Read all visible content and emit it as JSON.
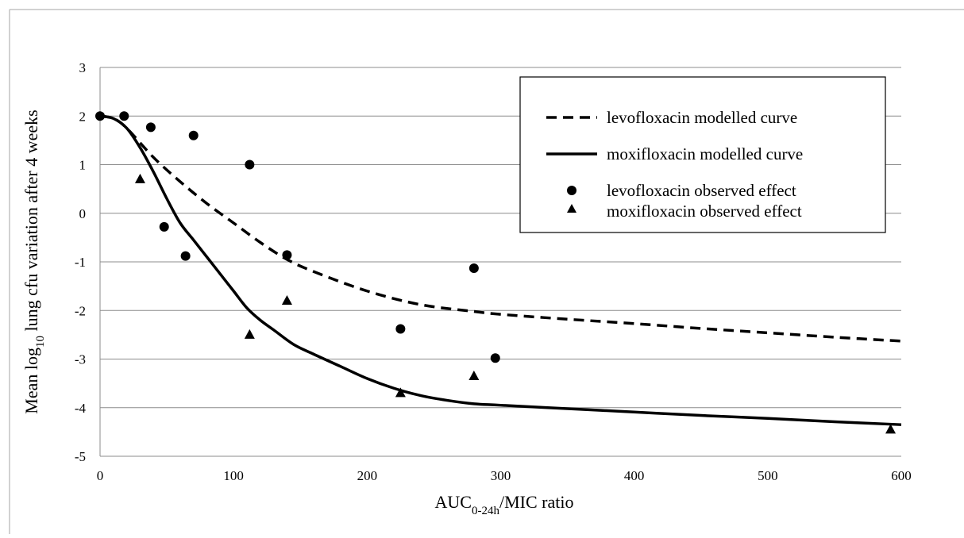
{
  "chart_data": {
    "type": "line",
    "title": "",
    "xlabel_main": "AUC",
    "xlabel_sub": "0-24h",
    "xlabel_rest": "/MIC ratio",
    "ylabel_main": "Mean log",
    "ylabel_sub": "10",
    "ylabel_rest": " lung cfu variation after 4 weeks",
    "xlim": [
      0,
      600
    ],
    "ylim": [
      -5,
      3
    ],
    "x_ticks": [
      0,
      100,
      200,
      300,
      400,
      500,
      600
    ],
    "y_ticks": [
      3,
      2,
      1,
      0,
      -1,
      -2,
      -3,
      -4,
      -5
    ],
    "grid": "horizontal",
    "legend_position": "top-right",
    "series": [
      {
        "name": "levofloxacin modelled curve",
        "style": "dashed-line",
        "color": "#000000",
        "x": [
          0,
          10,
          20,
          40,
          60,
          80,
          100,
          120,
          140,
          160,
          200,
          240,
          280,
          300,
          350,
          400,
          450,
          500,
          550,
          600
        ],
        "y": [
          2.0,
          1.95,
          1.75,
          1.15,
          0.65,
          0.2,
          -0.2,
          -0.6,
          -0.95,
          -1.2,
          -1.6,
          -1.88,
          -2.02,
          -2.08,
          -2.18,
          -2.27,
          -2.37,
          -2.46,
          -2.55,
          -2.63
        ]
      },
      {
        "name": "moxifloxacin modelled curve",
        "style": "solid-line",
        "color": "#000000",
        "x": [
          0,
          10,
          20,
          30,
          40,
          50,
          60,
          70,
          80,
          90,
          100,
          110,
          120,
          130,
          145,
          160,
          180,
          200,
          220,
          240,
          260,
          280,
          300,
          350,
          400,
          450,
          500,
          550,
          600
        ],
        "y": [
          2.0,
          1.95,
          1.75,
          1.35,
          0.85,
          0.3,
          -0.2,
          -0.55,
          -0.9,
          -1.25,
          -1.6,
          -1.95,
          -2.2,
          -2.4,
          -2.7,
          -2.9,
          -3.15,
          -3.4,
          -3.6,
          -3.75,
          -3.85,
          -3.92,
          -3.95,
          -4.02,
          -4.09,
          -4.16,
          -4.22,
          -4.29,
          -4.35
        ]
      },
      {
        "name": "levofloxacin observed effect",
        "style": "circle-marker",
        "color": "#000000",
        "x": [
          0,
          18,
          38,
          48,
          64,
          70,
          112,
          140,
          225,
          280,
          296
        ],
        "y": [
          2.0,
          2.0,
          1.77,
          -0.28,
          -0.88,
          1.6,
          1.0,
          -0.86,
          -2.38,
          -1.13,
          -2.98
        ]
      },
      {
        "name": "moxifloxacin observed effect",
        "style": "triangle-marker",
        "color": "#000000",
        "x": [
          30,
          112,
          140,
          225,
          280,
          592
        ],
        "y": [
          0.7,
          -2.5,
          -1.8,
          -3.7,
          -3.35,
          -4.45
        ]
      }
    ]
  }
}
